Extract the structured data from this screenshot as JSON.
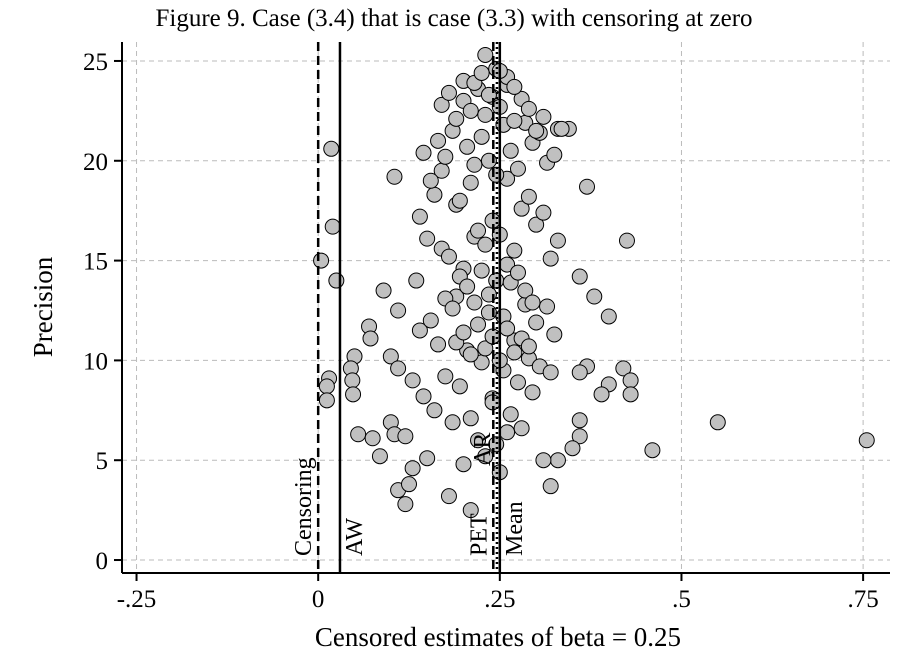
{
  "chart_data": {
    "type": "scatter",
    "title": "Figure 9. Case (3.4) that is case (3.3) with censoring at zero",
    "x_label": "Censored estimates of beta = 0.25",
    "y_label": "Precision",
    "xlim": [
      -0.27,
      0.787
    ],
    "ylim": [
      -0.65,
      25.95
    ],
    "xticks": [
      {
        "value": -0.25,
        "label": "-.25"
      },
      0,
      {
        "value": 0.25,
        "label": ".25"
      },
      {
        "value": 0.5,
        "label": ".5"
      },
      {
        "value": 0.75,
        "label": ".75"
      }
    ],
    "yticks": [
      0,
      5,
      10,
      15,
      20,
      25
    ],
    "grid": true,
    "color": "#c0c0c0",
    "reference_lines": [
      {
        "label": "Censoring",
        "value": 0,
        "style": "dashed"
      },
      {
        "label": "AW",
        "value": 0.03,
        "style": "solid"
      },
      {
        "label": "PET",
        "value": 0.241,
        "style": "dashed"
      },
      {
        "label": "AR",
        "value": 0.246,
        "style": "dotted"
      },
      {
        "label": "Mean",
        "value": 0.25,
        "style": "solid"
      }
    ],
    "x": [
      0.755,
      0.55,
      0.46,
      0.425,
      0.42,
      0.43,
      0.43,
      0.4,
      0.4,
      0.39,
      0.38,
      0.37,
      0.36,
      0.37,
      0.36,
      0.36,
      0.36,
      0.35,
      0.33,
      0.32,
      0.345,
      0.33,
      0.018,
      0.02,
      0.004,
      0.025,
      0.015,
      0.012,
      0.012,
      0.07,
      0.072,
      0.05,
      0.045,
      0.047,
      0.048,
      0.055,
      0.075,
      0.085,
      0.105,
      0.1,
      0.11,
      0.1,
      0.105,
      0.12,
      0.11,
      0.12,
      0.13,
      0.125,
      0.09,
      0.11,
      0.13,
      0.135,
      0.14,
      0.145,
      0.15,
      0.155,
      0.16,
      0.165,
      0.17,
      0.175,
      0.18,
      0.185,
      0.19,
      0.195,
      0.2,
      0.205,
      0.21,
      0.215,
      0.22,
      0.225,
      0.23,
      0.235,
      0.24,
      0.245,
      0.25,
      0.255,
      0.26,
      0.265,
      0.27,
      0.275,
      0.28,
      0.285,
      0.29,
      0.295,
      0.3,
      0.305,
      0.31,
      0.315,
      0.32,
      0.325,
      0.14,
      0.15,
      0.16,
      0.17,
      0.18,
      0.19,
      0.2,
      0.21,
      0.22,
      0.23,
      0.24,
      0.25,
      0.26,
      0.27,
      0.28,
      0.29,
      0.3,
      0.31,
      0.32,
      0.33,
      0.145,
      0.155,
      0.165,
      0.175,
      0.185,
      0.195,
      0.205,
      0.215,
      0.225,
      0.235,
      0.245,
      0.255,
      0.265,
      0.275,
      0.285,
      0.295,
      0.305,
      0.315,
      0.325,
      0.335,
      0.17,
      0.18,
      0.19,
      0.2,
      0.21,
      0.22,
      0.23,
      0.24,
      0.25,
      0.26,
      0.27,
      0.28,
      0.29,
      0.3,
      0.31,
      0.175,
      0.185,
      0.195,
      0.205,
      0.215,
      0.225,
      0.235,
      0.245,
      0.255,
      0.265,
      0.275,
      0.285,
      0.295,
      0.19,
      0.2,
      0.21,
      0.22,
      0.23,
      0.24,
      0.25,
      0.26,
      0.27,
      0.28,
      0.29,
      0.2,
      0.215,
      0.225,
      0.235,
      0.245,
      0.26,
      0.27,
      0.21,
      0.24,
      0.25,
      0.23,
      0.26
    ],
    "values": [
      6.0,
      6.9,
      5.5,
      16.0,
      9.6,
      9.0,
      8.3,
      12.2,
      8.8,
      8.3,
      13.2,
      18.7,
      14.2,
      9.7,
      9.4,
      7.0,
      6.2,
      5.6,
      5.0,
      3.7,
      21.6,
      21.6,
      20.6,
      16.7,
      15.0,
      14.0,
      9.1,
      8.7,
      8.0,
      11.7,
      11.1,
      10.2,
      9.6,
      9.0,
      8.3,
      6.3,
      6.1,
      5.2,
      19.2,
      10.2,
      9.6,
      6.9,
      6.3,
      6.2,
      3.5,
      2.8,
      4.6,
      3.8,
      13.5,
      12.5,
      9.0,
      14.0,
      11.5,
      8.2,
      5.1,
      12.0,
      7.5,
      10.8,
      15.6,
      9.2,
      3.2,
      6.9,
      13.2,
      8.7,
      4.8,
      10.5,
      7.1,
      16.2,
      6.0,
      9.9,
      5.2,
      12.4,
      8.1,
      5.8,
      4.4,
      9.5,
      14.8,
      7.3,
      11.0,
      8.9,
      6.6,
      12.8,
      10.1,
      8.4,
      11.9,
      9.7,
      5.0,
      12.7,
      9.4,
      11.3,
      17.2,
      16.1,
      18.3,
      19.5,
      15.2,
      17.8,
      14.6,
      18.9,
      16.5,
      15.8,
      17.0,
      16.3,
      19.1,
      15.5,
      17.6,
      18.2,
      16.8,
      17.4,
      15.1,
      16.0,
      20.4,
      19.0,
      21.0,
      20.2,
      21.5,
      18.0,
      20.7,
      19.8,
      21.2,
      20.0,
      19.3,
      21.8,
      20.5,
      19.6,
      21.9,
      20.9,
      21.4,
      19.9,
      20.3,
      21.6,
      22.8,
      23.4,
      22.1,
      23.0,
      22.5,
      23.6,
      22.3,
      23.2,
      22.7,
      23.8,
      22.0,
      23.1,
      22.6,
      21.5,
      22.2,
      13.1,
      12.6,
      14.2,
      13.7,
      12.9,
      14.5,
      13.3,
      14.0,
      12.2,
      13.9,
      14.4,
      13.5,
      12.9,
      10.9,
      11.4,
      10.3,
      11.8,
      10.6,
      11.2,
      10.0,
      11.6,
      10.4,
      11.1,
      10.7,
      24.0,
      23.9,
      24.4,
      23.3,
      24.6,
      24.2,
      23.7,
      2.5,
      7.9,
      24.5,
      25.3,
      6.4
    ]
  }
}
